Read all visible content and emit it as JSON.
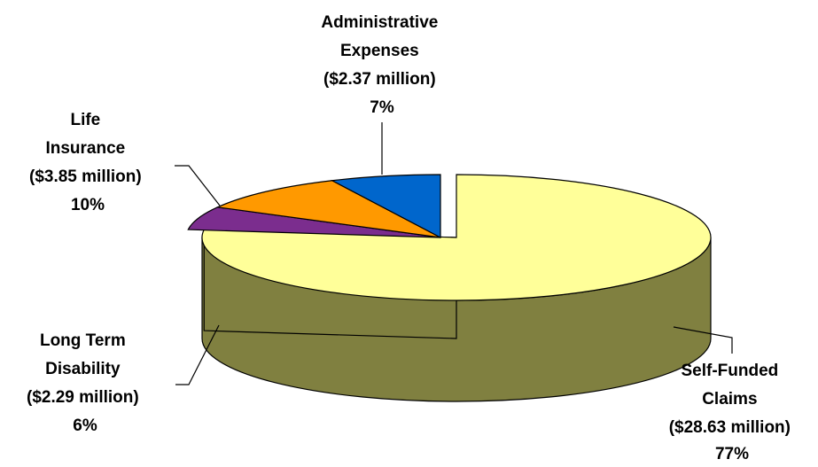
{
  "chart_data": {
    "type": "pie",
    "title": "",
    "slices": [
      {
        "key": "self_funded",
        "lines": [
          "Self-Funded",
          "Claims",
          "($28.63 million)",
          "77%"
        ],
        "amount_millions": 28.63,
        "percent": 77,
        "top_color": "#FFFF99",
        "side_color": "#808040"
      },
      {
        "key": "ltd",
        "lines": [
          "Long Term",
          "Disability",
          "($2.29 million)",
          "6%"
        ],
        "amount_millions": 2.29,
        "percent": 6,
        "top_color": "#7B2D8E",
        "side_color": "#40003F"
      },
      {
        "key": "life",
        "lines": [
          "Life",
          "Insurance",
          "($3.85 million)",
          "10%"
        ],
        "amount_millions": 3.85,
        "percent": 10,
        "top_color": "#FF9900",
        "side_color": "#8F5A00"
      },
      {
        "key": "admin",
        "lines": [
          "Administrative",
          "Expenses",
          "($2.37 million)",
          "7%"
        ],
        "amount_millions": 2.37,
        "percent": 7,
        "top_color": "#0066CC",
        "side_color": "#00337A"
      }
    ],
    "exploded_slice": "self_funded",
    "three_d": true
  }
}
